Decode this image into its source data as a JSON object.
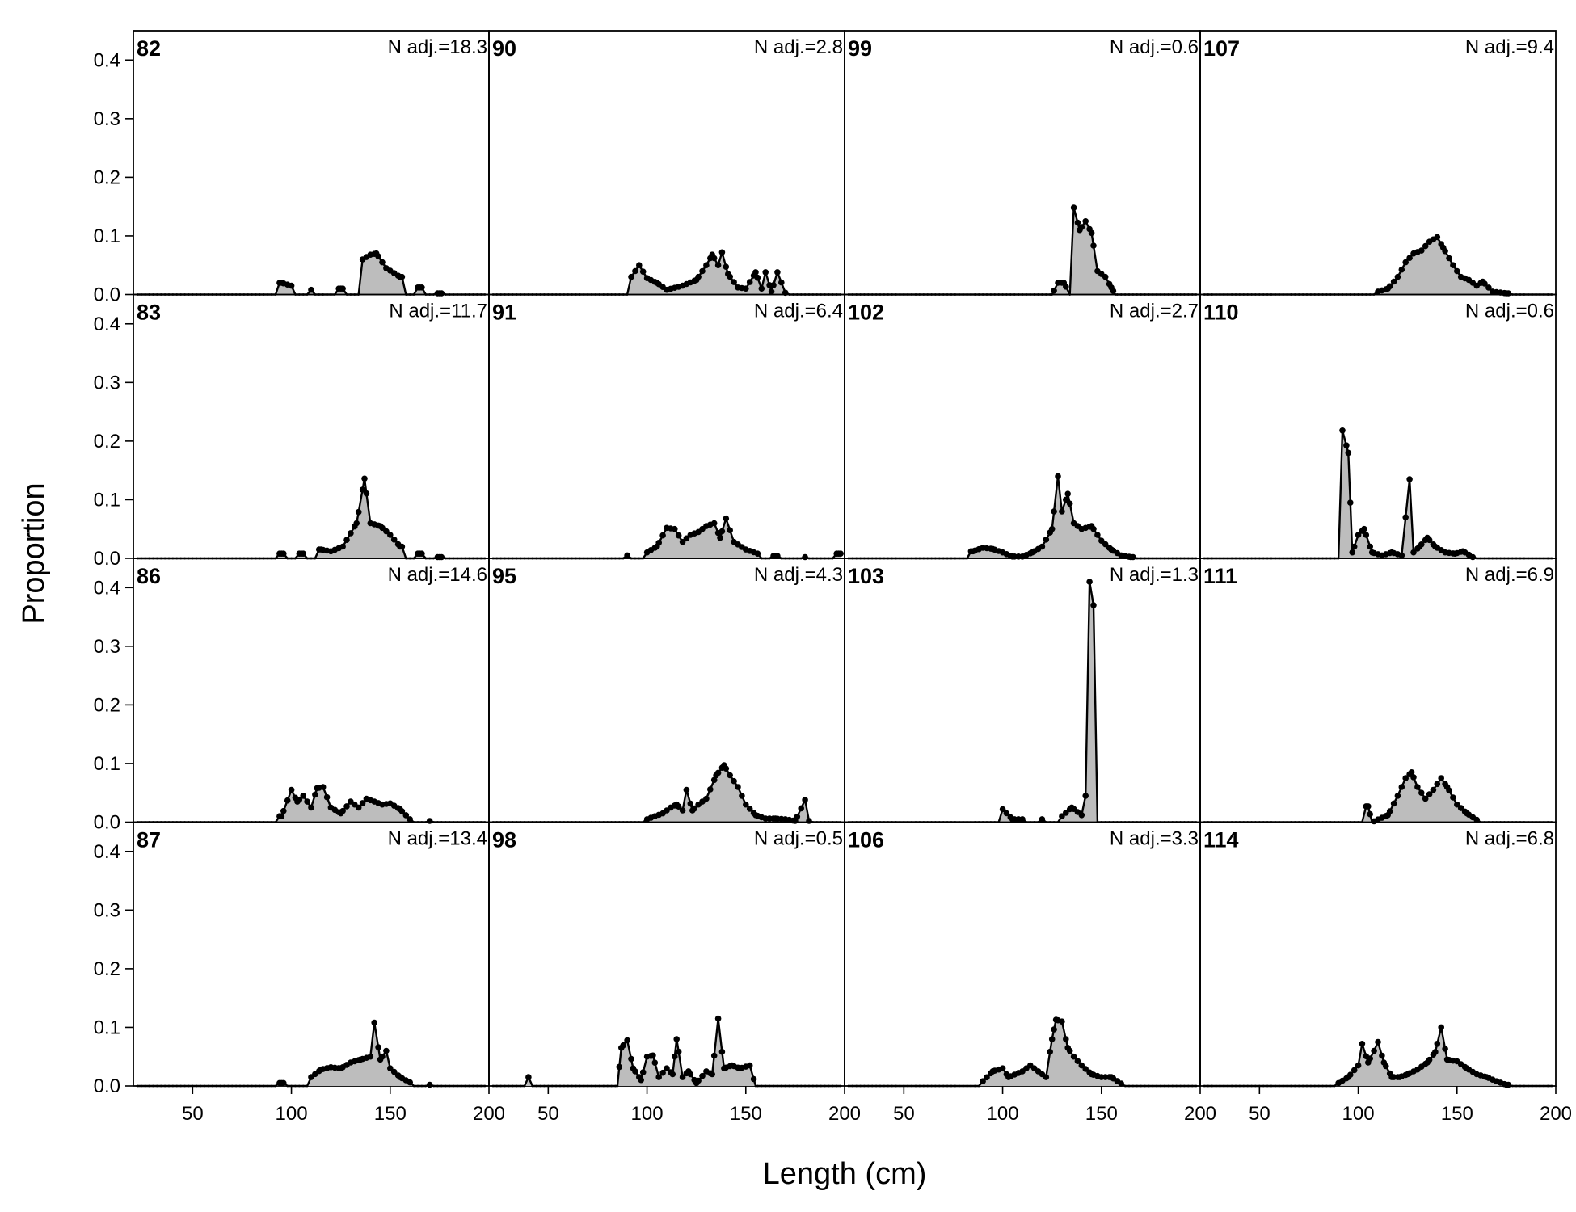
{
  "chart_data": {
    "type": "area",
    "layout": "4x4 panel grid",
    "xlabel": "Length (cm)",
    "ylabel": "Proportion",
    "xlim": [
      20,
      200
    ],
    "ylim": [
      0,
      0.45
    ],
    "x_ticks": [
      50,
      100,
      150,
      200
    ],
    "y_ticks": [
      0.0,
      0.1,
      0.2,
      0.3,
      0.4
    ],
    "y_tick_labels": [
      "0.0",
      "0.1",
      "0.2",
      "0.3",
      "0.4"
    ],
    "style": {
      "fill": "#bdbdbd",
      "line": "#000000",
      "grid": false
    },
    "panels": [
      {
        "label": "82",
        "n_label": "N adj.=18.3",
        "peaks": [
          [
            95,
            0.02
          ],
          [
            100,
            0.015
          ],
          [
            110,
            0.008
          ],
          [
            125,
            0.01
          ],
          [
            136,
            0.06
          ],
          [
            140,
            0.068
          ],
          [
            143,
            0.07
          ],
          [
            148,
            0.045
          ],
          [
            155,
            0.03
          ],
          [
            165,
            0.012
          ],
          [
            175,
            0.002
          ]
        ]
      },
      {
        "label": "83",
        "n_label": "N adj.=11.7",
        "peaks": [
          [
            95,
            0.008
          ],
          [
            105,
            0.008
          ],
          [
            115,
            0.015
          ],
          [
            120,
            0.012
          ],
          [
            126,
            0.02
          ],
          [
            133,
            0.06
          ],
          [
            137,
            0.136
          ],
          [
            140,
            0.06
          ],
          [
            145,
            0.055
          ],
          [
            150,
            0.04
          ],
          [
            155,
            0.02
          ],
          [
            165,
            0.008
          ],
          [
            175,
            0.002
          ]
        ]
      },
      {
        "label": "86",
        "n_label": "N adj.=14.6",
        "peaks": [
          [
            95,
            0.01
          ],
          [
            100,
            0.055
          ],
          [
            103,
            0.035
          ],
          [
            106,
            0.045
          ],
          [
            110,
            0.025
          ],
          [
            113,
            0.058
          ],
          [
            116,
            0.06
          ],
          [
            120,
            0.025
          ],
          [
            125,
            0.015
          ],
          [
            130,
            0.035
          ],
          [
            134,
            0.025
          ],
          [
            138,
            0.04
          ],
          [
            142,
            0.035
          ],
          [
            146,
            0.03
          ],
          [
            150,
            0.032
          ],
          [
            155,
            0.022
          ],
          [
            160,
            0.005
          ],
          [
            170,
            0.002
          ]
        ]
      },
      {
        "label": "87",
        "n_label": "N adj.=13.4",
        "peaks": [
          [
            95,
            0.005
          ],
          [
            110,
            0.015
          ],
          [
            115,
            0.028
          ],
          [
            120,
            0.032
          ],
          [
            125,
            0.03
          ],
          [
            130,
            0.04
          ],
          [
            135,
            0.045
          ],
          [
            140,
            0.05
          ],
          [
            142,
            0.108
          ],
          [
            145,
            0.045
          ],
          [
            148,
            0.06
          ],
          [
            150,
            0.03
          ],
          [
            155,
            0.015
          ],
          [
            160,
            0.006
          ],
          [
            170,
            0.002
          ]
        ]
      },
      {
        "label": "90",
        "n_label": "N adj.=2.8",
        "peaks": [
          [
            92,
            0.03
          ],
          [
            96,
            0.05
          ],
          [
            100,
            0.028
          ],
          [
            105,
            0.02
          ],
          [
            110,
            0.008
          ],
          [
            118,
            0.015
          ],
          [
            125,
            0.025
          ],
          [
            130,
            0.05
          ],
          [
            133,
            0.068
          ],
          [
            136,
            0.05
          ],
          [
            138,
            0.072
          ],
          [
            141,
            0.035
          ],
          [
            146,
            0.012
          ],
          [
            150,
            0.01
          ],
          [
            155,
            0.038
          ],
          [
            158,
            0.01
          ],
          [
            160,
            0.038
          ],
          [
            163,
            0.005
          ],
          [
            166,
            0.038
          ],
          [
            170,
            0.003
          ]
        ]
      },
      {
        "label": "91",
        "n_label": "N adj.=6.4",
        "peaks": [
          [
            90,
            0.005
          ],
          [
            100,
            0.01
          ],
          [
            105,
            0.02
          ],
          [
            110,
            0.052
          ],
          [
            114,
            0.05
          ],
          [
            118,
            0.028
          ],
          [
            122,
            0.04
          ],
          [
            126,
            0.045
          ],
          [
            130,
            0.055
          ],
          [
            134,
            0.06
          ],
          [
            137,
            0.035
          ],
          [
            140,
            0.068
          ],
          [
            144,
            0.028
          ],
          [
            150,
            0.015
          ],
          [
            156,
            0.008
          ],
          [
            165,
            0.004
          ],
          [
            180,
            0.002
          ],
          [
            197,
            0.008
          ]
        ]
      },
      {
        "label": "95",
        "n_label": "N adj.=4.3",
        "peaks": [
          [
            100,
            0.005
          ],
          [
            108,
            0.015
          ],
          [
            112,
            0.025
          ],
          [
            115,
            0.03
          ],
          [
            118,
            0.02
          ],
          [
            120,
            0.055
          ],
          [
            123,
            0.02
          ],
          [
            126,
            0.03
          ],
          [
            130,
            0.04
          ],
          [
            135,
            0.08
          ],
          [
            139,
            0.097
          ],
          [
            142,
            0.08
          ],
          [
            146,
            0.06
          ],
          [
            150,
            0.03
          ],
          [
            155,
            0.012
          ],
          [
            160,
            0.006
          ],
          [
            165,
            0.006
          ],
          [
            170,
            0.005
          ],
          [
            175,
            0.002
          ],
          [
            180,
            0.038
          ],
          [
            182,
            0.002
          ]
        ]
      },
      {
        "label": "98",
        "n_label": "N adj.=0.5",
        "peaks": [
          [
            40,
            0.015
          ],
          [
            85,
            0.0
          ],
          [
            87,
            0.065
          ],
          [
            90,
            0.078
          ],
          [
            93,
            0.03
          ],
          [
            97,
            0.01
          ],
          [
            100,
            0.05
          ],
          [
            103,
            0.052
          ],
          [
            106,
            0.015
          ],
          [
            110,
            0.03
          ],
          [
            113,
            0.02
          ],
          [
            115,
            0.08
          ],
          [
            118,
            0.015
          ],
          [
            121,
            0.025
          ],
          [
            125,
            0.005
          ],
          [
            130,
            0.025
          ],
          [
            133,
            0.02
          ],
          [
            136,
            0.115
          ],
          [
            139,
            0.03
          ],
          [
            143,
            0.035
          ],
          [
            147,
            0.03
          ],
          [
            152,
            0.035
          ],
          [
            155,
            0.0
          ]
        ]
      },
      {
        "label": "99",
        "n_label": "N adj.=0.6",
        "peaks": [
          [
            125,
            0.0
          ],
          [
            128,
            0.02
          ],
          [
            131,
            0.02
          ],
          [
            134,
            0.0
          ],
          [
            136,
            0.148
          ],
          [
            139,
            0.11
          ],
          [
            142,
            0.125
          ],
          [
            145,
            0.105
          ],
          [
            148,
            0.04
          ],
          [
            152,
            0.03
          ],
          [
            155,
            0.012
          ],
          [
            157,
            0.0
          ]
        ]
      },
      {
        "label": "102",
        "n_label": "N adj.=2.7",
        "peaks": [
          [
            85,
            0.012
          ],
          [
            90,
            0.018
          ],
          [
            95,
            0.016
          ],
          [
            100,
            0.01
          ],
          [
            105,
            0.003
          ],
          [
            110,
            0.003
          ],
          [
            115,
            0.01
          ],
          [
            120,
            0.02
          ],
          [
            125,
            0.05
          ],
          [
            128,
            0.14
          ],
          [
            130,
            0.08
          ],
          [
            133,
            0.11
          ],
          [
            136,
            0.06
          ],
          [
            140,
            0.05
          ],
          [
            145,
            0.055
          ],
          [
            150,
            0.03
          ],
          [
            155,
            0.015
          ],
          [
            160,
            0.005
          ],
          [
            165,
            0.002
          ]
        ]
      },
      {
        "label": "103",
        "n_label": "N adj.=1.3",
        "peaks": [
          [
            100,
            0.022
          ],
          [
            105,
            0.005
          ],
          [
            110,
            0.005
          ],
          [
            120,
            0.005
          ],
          [
            130,
            0.01
          ],
          [
            135,
            0.025
          ],
          [
            140,
            0.012
          ],
          [
            142,
            0.045
          ],
          [
            144,
            0.41
          ],
          [
            146,
            0.37
          ],
          [
            148,
            0.0
          ],
          [
            160,
            0.0
          ]
        ]
      },
      {
        "label": "106",
        "n_label": "N adj.=3.3",
        "peaks": [
          [
            90,
            0.008
          ],
          [
            95,
            0.025
          ],
          [
            100,
            0.03
          ],
          [
            103,
            0.015
          ],
          [
            110,
            0.025
          ],
          [
            114,
            0.035
          ],
          [
            118,
            0.025
          ],
          [
            122,
            0.015
          ],
          [
            125,
            0.08
          ],
          [
            127,
            0.113
          ],
          [
            130,
            0.11
          ],
          [
            133,
            0.065
          ],
          [
            136,
            0.05
          ],
          [
            140,
            0.035
          ],
          [
            145,
            0.02
          ],
          [
            150,
            0.015
          ],
          [
            155,
            0.015
          ],
          [
            160,
            0.004
          ]
        ]
      },
      {
        "label": "107",
        "n_label": "N adj.=9.4",
        "peaks": [
          [
            110,
            0.005
          ],
          [
            115,
            0.01
          ],
          [
            120,
            0.03
          ],
          [
            124,
            0.055
          ],
          [
            128,
            0.07
          ],
          [
            132,
            0.075
          ],
          [
            136,
            0.09
          ],
          [
            140,
            0.098
          ],
          [
            143,
            0.08
          ],
          [
            148,
            0.05
          ],
          [
            152,
            0.03
          ],
          [
            156,
            0.025
          ],
          [
            160,
            0.015
          ],
          [
            163,
            0.022
          ],
          [
            168,
            0.005
          ],
          [
            175,
            0.002
          ]
        ]
      },
      {
        "label": "110",
        "n_label": "N adj.=0.6",
        "peaks": [
          [
            90,
            0.0
          ],
          [
            92,
            0.218
          ],
          [
            95,
            0.18
          ],
          [
            97,
            0.01
          ],
          [
            100,
            0.04
          ],
          [
            103,
            0.05
          ],
          [
            107,
            0.01
          ],
          [
            112,
            0.005
          ],
          [
            117,
            0.01
          ],
          [
            122,
            0.005
          ],
          [
            126,
            0.135
          ],
          [
            128,
            0.01
          ],
          [
            131,
            0.02
          ],
          [
            135,
            0.035
          ],
          [
            139,
            0.02
          ],
          [
            144,
            0.01
          ],
          [
            149,
            0.008
          ],
          [
            153,
            0.012
          ],
          [
            158,
            0.002
          ]
        ]
      },
      {
        "label": "111",
        "n_label": "N adj.=6.9",
        "peaks": [
          [
            105,
            0.027
          ],
          [
            107,
            0.0
          ],
          [
            115,
            0.012
          ],
          [
            120,
            0.045
          ],
          [
            124,
            0.075
          ],
          [
            127,
            0.085
          ],
          [
            130,
            0.06
          ],
          [
            134,
            0.04
          ],
          [
            138,
            0.055
          ],
          [
            142,
            0.075
          ],
          [
            145,
            0.06
          ],
          [
            150,
            0.03
          ],
          [
            155,
            0.015
          ],
          [
            160,
            0.004
          ]
        ]
      },
      {
        "label": "114",
        "n_label": "N adj.=6.8",
        "peaks": [
          [
            90,
            0.005
          ],
          [
            95,
            0.015
          ],
          [
            100,
            0.035
          ],
          [
            102,
            0.072
          ],
          [
            105,
            0.04
          ],
          [
            108,
            0.06
          ],
          [
            110,
            0.075
          ],
          [
            113,
            0.04
          ],
          [
            117,
            0.015
          ],
          [
            121,
            0.015
          ],
          [
            125,
            0.02
          ],
          [
            130,
            0.028
          ],
          [
            135,
            0.04
          ],
          [
            139,
            0.058
          ],
          [
            142,
            0.1
          ],
          [
            145,
            0.045
          ],
          [
            150,
            0.042
          ],
          [
            155,
            0.03
          ],
          [
            160,
            0.02
          ],
          [
            165,
            0.015
          ],
          [
            170,
            0.008
          ],
          [
            175,
            0.002
          ]
        ]
      }
    ]
  }
}
